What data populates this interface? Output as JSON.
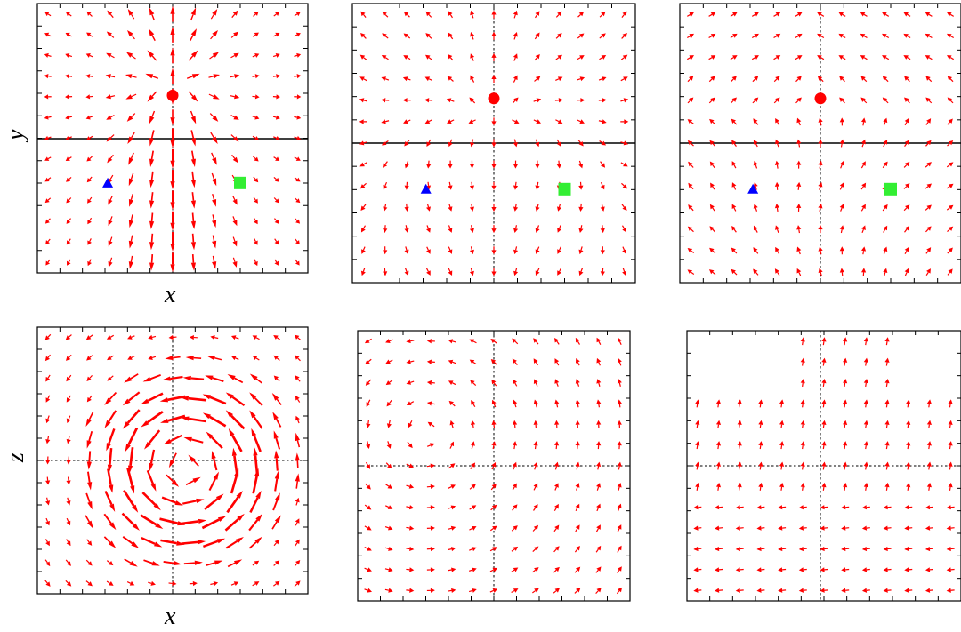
{
  "figure": {
    "colors": {
      "arrow": "#ff0000",
      "marker_circle": "#ff0000",
      "marker_triangle": "#0000ff",
      "marker_square": "#33ee33",
      "frame": "#000000"
    },
    "labels": {
      "top_xlabel": "x",
      "top_ylabel": "y",
      "bottom_xlabel": "x",
      "bottom_ylabel": "z"
    },
    "panels": [
      {
        "id": "top-left",
        "field": "source-top-strong",
        "markers": [
          "circle",
          "triangle",
          "square"
        ],
        "solid_horizontal_line": true
      },
      {
        "id": "top-center",
        "field": "weak-outward",
        "markers": [
          "circle",
          "triangle",
          "square"
        ],
        "solid_horizontal_line": true
      },
      {
        "id": "top-right",
        "field": "weak-upward-outward",
        "markers": [
          "circle",
          "triangle",
          "square"
        ],
        "solid_horizontal_line": true
      },
      {
        "id": "bottom-left",
        "field": "vortex-strong",
        "markers": [],
        "solid_horizontal_line": false
      },
      {
        "id": "bottom-center",
        "field": "weak-rotation",
        "markers": [],
        "solid_horizontal_line": false
      },
      {
        "id": "bottom-right",
        "field": "sparse-upward",
        "markers": [],
        "solid_horizontal_line": false
      }
    ]
  }
}
